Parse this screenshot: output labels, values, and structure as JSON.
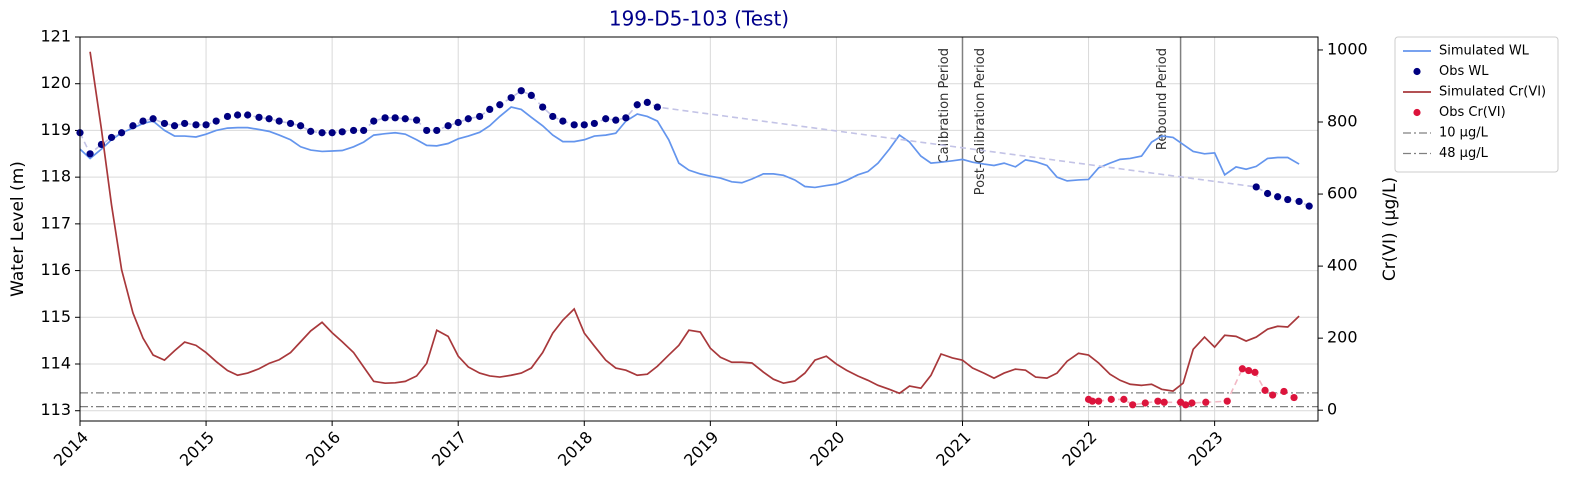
{
  "chart_data": {
    "type": "line",
    "title": "199-D5-103 (Test)",
    "title_color": "#00008b",
    "ylabel": "Water Level (m)",
    "y2label": "Cr(VI) (µg/L)",
    "xlim": [
      2014,
      2023.82
    ],
    "xticks": [
      2014,
      2015,
      2016,
      2017,
      2018,
      2019,
      2020,
      2021,
      2022,
      2023
    ],
    "ylim": [
      112.78,
      121
    ],
    "yticks": [
      113,
      114,
      115,
      116,
      117,
      118,
      119,
      120,
      121
    ],
    "y2lim": [
      -30,
      1036
    ],
    "y2ticks": [
      0,
      200,
      400,
      600,
      800,
      1000
    ],
    "grid": true,
    "legend": "outside-upper-right",
    "series": [
      {
        "name": "Simulated WL",
        "color": "#6495ed",
        "style": "line",
        "axis": "y",
        "x": [
          2014.0,
          2014.08,
          2014.17,
          2014.25,
          2014.33,
          2014.42,
          2014.5,
          2014.58,
          2014.67,
          2014.75,
          2014.83,
          2014.92,
          2015.0,
          2015.08,
          2015.17,
          2015.25,
          2015.33,
          2015.42,
          2015.5,
          2015.58,
          2015.67,
          2015.75,
          2015.83,
          2015.92,
          2016.0,
          2016.08,
          2016.17,
          2016.25,
          2016.33,
          2016.42,
          2016.5,
          2016.58,
          2016.67,
          2016.75,
          2016.83,
          2016.92,
          2017.0,
          2017.08,
          2017.17,
          2017.25,
          2017.33,
          2017.42,
          2017.5,
          2017.58,
          2017.67,
          2017.75,
          2017.83,
          2017.92,
          2018.0,
          2018.08,
          2018.17,
          2018.25,
          2018.33,
          2018.42,
          2018.5,
          2018.58,
          2018.67,
          2018.75,
          2018.83,
          2018.92,
          2019.0,
          2019.08,
          2019.17,
          2019.25,
          2019.33,
          2019.42,
          2019.5,
          2019.58,
          2019.67,
          2019.75,
          2019.83,
          2019.92,
          2020.0,
          2020.08,
          2020.17,
          2020.25,
          2020.33,
          2020.42,
          2020.5,
          2020.58,
          2020.67,
          2020.75,
          2020.83,
          2020.92,
          2021.0,
          2021.08,
          2021.17,
          2021.25,
          2021.33,
          2021.42,
          2021.5,
          2021.58,
          2021.67,
          2021.75,
          2021.83,
          2021.92,
          2022.0,
          2022.08,
          2022.17,
          2022.25,
          2022.33,
          2022.42,
          2022.5,
          2022.58,
          2022.67,
          2022.75,
          2022.83,
          2022.92,
          2023.0,
          2023.08,
          2023.17,
          2023.25,
          2023.33,
          2023.42,
          2023.5,
          2023.58,
          2023.67
        ],
        "values": [
          118.6,
          118.4,
          118.6,
          118.8,
          118.95,
          119.05,
          119.15,
          119.2,
          119.0,
          118.88,
          118.88,
          118.86,
          118.92,
          119.0,
          119.05,
          119.06,
          119.06,
          119.02,
          118.98,
          118.9,
          118.8,
          118.65,
          118.58,
          118.55,
          118.56,
          118.57,
          118.65,
          118.75,
          118.9,
          118.93,
          118.95,
          118.92,
          118.8,
          118.68,
          118.67,
          118.72,
          118.82,
          118.88,
          118.96,
          119.1,
          119.3,
          119.5,
          119.45,
          119.28,
          119.1,
          118.9,
          118.76,
          118.76,
          118.8,
          118.88,
          118.9,
          118.94,
          119.2,
          119.35,
          119.3,
          119.2,
          118.8,
          118.3,
          118.15,
          118.07,
          118.02,
          117.98,
          117.9,
          117.88,
          117.96,
          118.07,
          118.07,
          118.04,
          117.94,
          117.8,
          117.78,
          117.82,
          117.85,
          117.93,
          118.05,
          118.12,
          118.3,
          118.6,
          118.9,
          118.75,
          118.45,
          118.3,
          118.32,
          118.35,
          118.38,
          118.32,
          118.28,
          118.25,
          118.3,
          118.22,
          118.37,
          118.33,
          118.25,
          118.0,
          117.92,
          117.94,
          117.95,
          118.2,
          118.3,
          118.38,
          118.4,
          118.45,
          118.75,
          118.88,
          118.85,
          118.7,
          118.55,
          118.5,
          118.52,
          118.05,
          118.22,
          118.17,
          118.23,
          118.4,
          118.42,
          118.42,
          118.28
        ]
      },
      {
        "name": "Obs WL",
        "color": "#000080",
        "style": "dots",
        "axis": "y",
        "link_color": "#c3c3e6",
        "x": [
          2014.0,
          2014.08,
          2014.17,
          2014.25,
          2014.33,
          2014.42,
          2014.5,
          2014.58,
          2014.67,
          2014.75,
          2014.83,
          2014.92,
          2015.0,
          2015.08,
          2015.17,
          2015.25,
          2015.33,
          2015.42,
          2015.5,
          2015.58,
          2015.67,
          2015.75,
          2015.83,
          2015.92,
          2016.0,
          2016.08,
          2016.17,
          2016.25,
          2016.33,
          2016.42,
          2016.5,
          2016.58,
          2016.67,
          2016.75,
          2016.83,
          2016.92,
          2017.0,
          2017.08,
          2017.17,
          2017.25,
          2017.33,
          2017.42,
          2017.5,
          2017.58,
          2017.67,
          2017.75,
          2017.83,
          2017.92,
          2018.0,
          2018.08,
          2018.17,
          2018.25,
          2018.33,
          2018.42,
          2018.5,
          2018.58,
          2023.33,
          2023.42,
          2023.5,
          2023.58,
          2023.67,
          2023.75
        ],
        "values": [
          118.95,
          118.5,
          118.7,
          118.85,
          118.95,
          119.1,
          119.2,
          119.25,
          119.15,
          119.1,
          119.15,
          119.12,
          119.12,
          119.2,
          119.3,
          119.33,
          119.33,
          119.28,
          119.25,
          119.2,
          119.15,
          119.1,
          118.98,
          118.95,
          118.95,
          118.97,
          119.0,
          119.0,
          119.2,
          119.27,
          119.27,
          119.25,
          119.22,
          119.0,
          119.0,
          119.1,
          119.17,
          119.25,
          119.3,
          119.45,
          119.55,
          119.7,
          119.85,
          119.75,
          119.5,
          119.3,
          119.2,
          119.12,
          119.12,
          119.15,
          119.25,
          119.22,
          119.27,
          119.55,
          119.6,
          119.5,
          117.79,
          117.65,
          117.58,
          117.52,
          117.48,
          117.38
        ]
      },
      {
        "name": "Simulated Cr(VI)",
        "color": "#a8383b",
        "style": "line",
        "axis": "y2",
        "x": [
          2014.08,
          2014.17,
          2014.25,
          2014.33,
          2014.42,
          2014.5,
          2014.58,
          2014.67,
          2014.75,
          2014.83,
          2014.92,
          2015.0,
          2015.08,
          2015.17,
          2015.25,
          2015.33,
          2015.42,
          2015.5,
          2015.58,
          2015.67,
          2015.75,
          2015.83,
          2015.92,
          2016.0,
          2016.08,
          2016.17,
          2016.25,
          2016.33,
          2016.42,
          2016.5,
          2016.58,
          2016.67,
          2016.75,
          2016.83,
          2016.92,
          2017.0,
          2017.08,
          2017.17,
          2017.25,
          2017.33,
          2017.42,
          2017.5,
          2017.58,
          2017.67,
          2017.75,
          2017.83,
          2017.92,
          2018.0,
          2018.08,
          2018.17,
          2018.25,
          2018.33,
          2018.42,
          2018.5,
          2018.58,
          2018.67,
          2018.75,
          2018.83,
          2018.92,
          2019.0,
          2019.08,
          2019.17,
          2019.25,
          2019.33,
          2019.42,
          2019.5,
          2019.58,
          2019.67,
          2019.75,
          2019.83,
          2019.92,
          2020.0,
          2020.08,
          2020.17,
          2020.25,
          2020.33,
          2020.42,
          2020.5,
          2020.58,
          2020.67,
          2020.75,
          2020.83,
          2020.92,
          2021.0,
          2021.08,
          2021.17,
          2021.25,
          2021.33,
          2021.42,
          2021.5,
          2021.58,
          2021.67,
          2021.75,
          2021.83,
          2021.92,
          2022.0,
          2022.08,
          2022.17,
          2022.25,
          2022.33,
          2022.42,
          2022.5,
          2022.58,
          2022.67,
          2022.75,
          2022.83,
          2022.92,
          2023.0,
          2023.08,
          2023.17,
          2023.25,
          2023.33,
          2023.42,
          2023.5,
          2023.58,
          2023.67
        ],
        "values": [
          995,
          780,
          570,
          390,
          270,
          200,
          153,
          139,
          165,
          189,
          180,
          160,
          135,
          110,
          97,
          103,
          115,
          130,
          140,
          160,
          190,
          220,
          244,
          215,
          190,
          160,
          120,
          80,
          75,
          76,
          80,
          95,
          130,
          222,
          205,
          150,
          120,
          103,
          95,
          92,
          97,
          103,
          117,
          160,
          214,
          250,
          281,
          214,
          178,
          139,
          117,
          111,
          97,
          100,
          122,
          153,
          180,
          222,
          217,
          172,
          147,
          133,
          133,
          131,
          106,
          86,
          75,
          81,
          103,
          139,
          150,
          128,
          111,
          95,
          83,
          69,
          58,
          47,
          67,
          61,
          97,
          156,
          145,
          139,
          117,
          103,
          89,
          103,
          114,
          111,
          92,
          89,
          103,
          136,
          158,
          153,
          131,
          100,
          83,
          72,
          69,
          72,
          58,
          53,
          75,
          169,
          203,
          175,
          208,
          205,
          192,
          203,
          225,
          233,
          231,
          261
        ]
      },
      {
        "name": "Obs Cr(VI)",
        "color": "#dc143c",
        "style": "dots",
        "axis": "y2",
        "link_color": "#f2b8c4",
        "x": [
          2022.0,
          2022.03,
          2022.08,
          2022.18,
          2022.28,
          2022.35,
          2022.45,
          2022.55,
          2022.6,
          2022.73,
          2022.77,
          2022.82,
          2022.93,
          2023.1,
          2023.22,
          2023.27,
          2023.32,
          2023.4,
          2023.46,
          2023.55,
          2023.63
        ],
        "values": [
          30,
          25,
          25,
          30,
          30,
          15,
          20,
          25,
          22,
          22,
          15,
          20,
          22,
          25,
          115,
          110,
          105,
          55,
          42,
          52,
          35
        ]
      }
    ],
    "thresholds": [
      {
        "name": "10 µg/L",
        "value": 10,
        "color": "#808080"
      },
      {
        "name": "48 µg/L",
        "value": 48,
        "color": "#808080"
      }
    ],
    "period_lines": [
      {
        "x": 2021.0,
        "before": "Calibration Period",
        "after": "Post-Calibration Period"
      },
      {
        "x": 2022.73,
        "before": "Rebound Period"
      }
    ]
  }
}
